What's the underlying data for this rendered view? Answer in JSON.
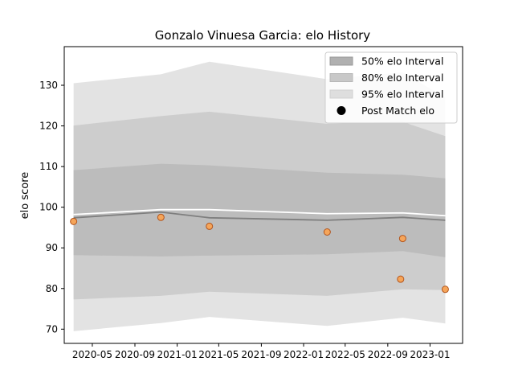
{
  "chart_data": {
    "type": "line",
    "title": "Gonzalo Vinuesa Garcia: elo History",
    "xlabel": "",
    "ylabel": "elo score",
    "xlim": [
      "2020-02-10",
      "2023-04-05"
    ],
    "ylim": [
      66.5,
      139.5
    ],
    "x_ticks": [
      "2020-05-01",
      "2020-09-01",
      "2021-01-01",
      "2021-05-01",
      "2021-09-01",
      "2022-01-01",
      "2022-05-01",
      "2022-09-01",
      "2023-01-01"
    ],
    "x_tick_labels": [
      "2020-05",
      "2020-09",
      "2021-01",
      "2021-05",
      "2021-09",
      "2022-01",
      "2022-05",
      "2022-09",
      "2023-01"
    ],
    "y_ticks": [
      70,
      80,
      90,
      100,
      110,
      120,
      130
    ],
    "y_tick_labels": [
      "70",
      "80",
      "90",
      "100",
      "110",
      "120",
      "130"
    ],
    "grid": false,
    "legend_position": "upper-right",
    "legend": [
      "50% elo Interval",
      "80% elo Interval",
      "95% elo Interval",
      "Post Match elo"
    ],
    "band_x": [
      "2020-03-08",
      "2020-11-15",
      "2021-04-04",
      "2022-03-10",
      "2022-10-14",
      "2023-02-14"
    ],
    "bands": [
      {
        "name": "95% elo Interval",
        "color": "#e3e3e3",
        "lower": [
          69.5,
          71.5,
          73.0,
          70.8,
          72.8,
          71.4
        ],
        "upper": [
          130.5,
          132.7,
          135.8,
          131.5,
          133.2,
          127.0
        ]
      },
      {
        "name": "80% elo Interval",
        "color": "#cdcdcd",
        "lower": [
          77.3,
          78.2,
          79.2,
          78.2,
          79.8,
          79.6
        ],
        "upper": [
          120.1,
          122.4,
          123.5,
          120.5,
          121.0,
          117.5
        ]
      },
      {
        "name": "50% elo Interval",
        "color": "#bcbcbc",
        "lower": [
          88.2,
          87.9,
          88.1,
          88.4,
          89.2,
          87.7
        ],
        "upper": [
          109.1,
          110.7,
          110.3,
          108.5,
          108.0,
          107.1
        ]
      }
    ],
    "series": [
      {
        "role": "mean",
        "color": "#7f7f7f",
        "values": [
          97.4,
          98.8,
          97.4,
          96.8,
          97.5,
          96.8
        ]
      },
      {
        "role": "mode",
        "color": "#ffffff",
        "values": [
          98.2,
          99.4,
          99.4,
          98.4,
          98.6,
          97.9
        ]
      }
    ],
    "points": {
      "name": "Post Match elo",
      "fill": "#f5a55a",
      "edge": "#b2541c",
      "x": [
        "2020-03-08",
        "2020-11-15",
        "2021-04-04",
        "2022-03-10",
        "2022-10-08",
        "2022-10-14",
        "2023-02-14"
      ],
      "y": [
        96.5,
        97.5,
        95.3,
        93.9,
        82.3,
        92.3,
        79.8
      ]
    }
  }
}
